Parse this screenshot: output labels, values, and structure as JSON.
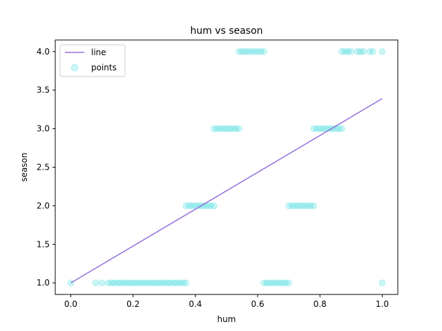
{
  "chart_data": {
    "type": "scatter",
    "title": "hum vs season",
    "xlabel": "hum",
    "ylabel": "season",
    "xlim": [
      -0.05,
      1.05
    ],
    "ylim": [
      0.85,
      4.15
    ],
    "xticks": [
      "0.0",
      "0.2",
      "0.4",
      "0.6",
      "0.8",
      "1.0"
    ],
    "yticks": [
      "1.0",
      "1.5",
      "2.0",
      "2.5",
      "3.0",
      "3.5",
      "4.0"
    ],
    "grid": false,
    "legend_position": "top-left",
    "line_color": "#9370db",
    "point_color": "#00ced1",
    "series": [
      {
        "name": "line",
        "kind": "line",
        "x": [
          0.0,
          1.0
        ],
        "y": [
          1.0,
          3.39
        ]
      },
      {
        "name": "points",
        "kind": "scatter",
        "groups": [
          {
            "y": 1.0,
            "x": [
              0.0,
              0.08,
              0.1,
              0.12,
              0.13,
              0.14,
              0.15,
              0.16,
              0.17,
              0.18,
              0.19,
              0.2,
              0.21,
              0.22,
              0.23,
              0.24,
              0.25,
              0.26,
              0.27,
              0.28,
              0.29,
              0.3,
              0.31,
              0.32,
              0.33,
              0.34,
              0.35,
              0.36,
              0.37,
              0.62,
              0.63,
              0.64,
              0.65,
              0.66,
              0.67,
              0.68,
              0.69,
              0.7,
              1.0
            ]
          },
          {
            "y": 2.0,
            "x": [
              0.37,
              0.38,
              0.39,
              0.4,
              0.41,
              0.42,
              0.43,
              0.44,
              0.45,
              0.46,
              0.7,
              0.71,
              0.72,
              0.73,
              0.74,
              0.75,
              0.76,
              0.77,
              0.78
            ]
          },
          {
            "y": 3.0,
            "x": [
              0.46,
              0.47,
              0.48,
              0.49,
              0.5,
              0.51,
              0.52,
              0.53,
              0.54,
              0.78,
              0.79,
              0.8,
              0.81,
              0.82,
              0.83,
              0.84,
              0.85,
              0.86,
              0.87
            ]
          },
          {
            "y": 4.0,
            "x": [
              0.54,
              0.55,
              0.56,
              0.57,
              0.58,
              0.59,
              0.6,
              0.61,
              0.62,
              0.87,
              0.88,
              0.89,
              0.9,
              0.92,
              0.93,
              0.94,
              0.96,
              0.97,
              1.0
            ]
          }
        ]
      }
    ]
  }
}
